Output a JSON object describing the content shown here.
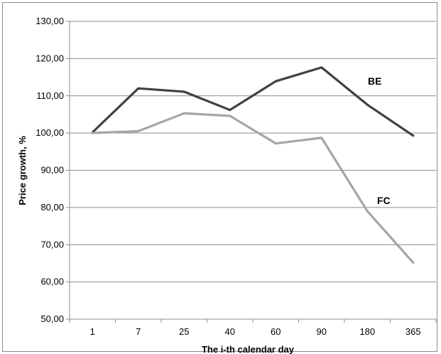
{
  "chart_data": {
    "type": "line",
    "title": "",
    "xlabel": "The i-th calendar day",
    "ylabel": "Price growth, %",
    "categories": [
      "1",
      "7",
      "25",
      "40",
      "60",
      "90",
      "180",
      "365"
    ],
    "ylim": [
      50,
      130
    ],
    "ytick_labels": [
      "50,00",
      "60,00",
      "70,00",
      "80,00",
      "90,00",
      "100,00",
      "110,00",
      "120,00",
      "130,00"
    ],
    "grid": true,
    "legend": "none",
    "series": [
      {
        "name": "BE",
        "color": "#404040",
        "values": [
          100.2,
          112.0,
          111.1,
          106.2,
          113.9,
          117.6,
          107.6,
          99.3
        ]
      },
      {
        "name": "FC",
        "color": "#a6a6a6",
        "values": [
          100.0,
          100.5,
          105.3,
          104.6,
          97.2,
          98.7,
          79.0,
          65.2
        ]
      }
    ]
  }
}
